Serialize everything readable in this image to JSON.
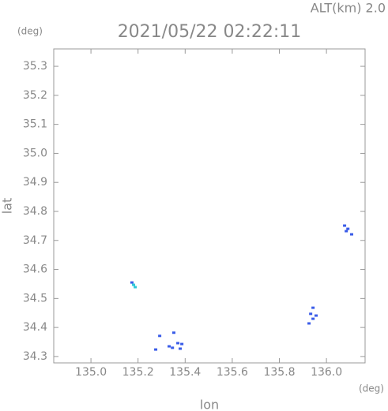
{
  "chart_data": {
    "type": "scatter",
    "title": "2021/05/22 02:22:11",
    "subtitle": "ALT(km) 2.0",
    "y_unit": "(deg)",
    "x_unit": "(deg)",
    "xlabel": "lon",
    "ylabel": "lat",
    "xlim": [
      134.842,
      136.164
    ],
    "ylim": [
      34.278,
      35.36
    ],
    "xticks": [
      {
        "value": 135.0,
        "label": "135.0"
      },
      135.2,
      135.4,
      135.6,
      135.8,
      {
        "value": 136.0,
        "label": "136.0"
      }
    ],
    "yticks": [
      34.3,
      34.4,
      34.5,
      34.6,
      34.7,
      34.8,
      34.9,
      {
        "value": 35.0,
        "label": "35.0"
      },
      35.1,
      35.2,
      35.3
    ],
    "x": [
      135.174,
      135.181,
      135.188,
      135.275,
      135.292,
      135.332,
      135.346,
      135.352,
      135.369,
      135.386,
      135.379,
      135.943,
      135.933,
      135.943,
      135.926,
      135.956,
      136.077,
      136.091,
      136.084,
      136.107
    ],
    "y": [
      34.555,
      34.547,
      34.539,
      34.324,
      34.371,
      34.335,
      34.33,
      34.382,
      34.346,
      34.343,
      34.327,
      34.468,
      34.447,
      34.43,
      34.414,
      34.441,
      34.751,
      34.74,
      34.732,
      34.721
    ],
    "colors": [
      "#3a5ce8",
      "#30c8d8",
      "#30c8d8",
      "#3a5ce8",
      "#3a5ce8",
      "#3a5ce8",
      "#3a5ce8",
      "#3a5ce8",
      "#3a5ce8",
      "#3a5ce8",
      "#3a5ce8",
      "#3a5ce8",
      "#3a5ce8",
      "#3a5ce8",
      "#3a5ce8",
      "#3a5ce8",
      "#3a5ce8",
      "#3a5ce8",
      "#3a5ce8",
      "#3a5ce8"
    ]
  }
}
